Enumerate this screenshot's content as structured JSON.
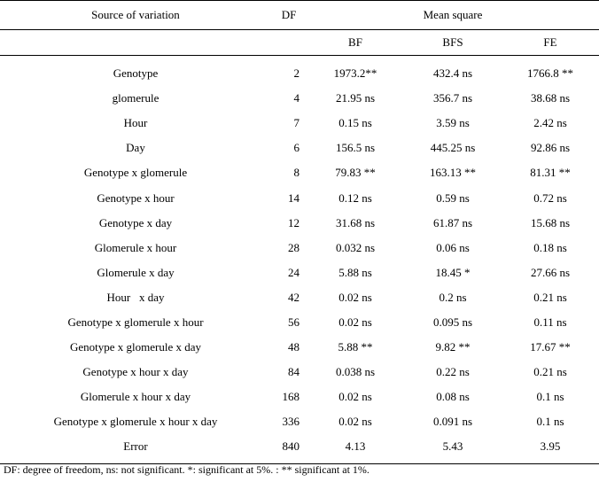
{
  "header": {
    "source": "Source of variation",
    "df": "DF",
    "mean_square": "Mean square",
    "bf": "BF",
    "bfs": "BFS",
    "fe": "FE"
  },
  "rows": [
    {
      "source": "Genotype",
      "df": "2",
      "bf": "1973.2**",
      "bfs": "432.4 ns",
      "fe": "1766.8 **"
    },
    {
      "source": "glomerule",
      "df": "4",
      "bf": "21.95 ns",
      "bfs": "356.7 ns",
      "fe": "38.68 ns"
    },
    {
      "source": "Hour",
      "df": "7",
      "bf": "0.15 ns",
      "bfs": "3.59 ns",
      "fe": "2.42 ns"
    },
    {
      "source": "Day",
      "df": "6",
      "bf": "156.5 ns",
      "bfs": "445.25 ns",
      "fe": "92.86 ns"
    },
    {
      "source": "Genotype x glomerule",
      "df": "8",
      "bf": "79.83 **",
      "bfs": "163.13 **",
      "fe": "81.31 **"
    },
    {
      "source": "Genotype x hour",
      "df": "14",
      "bf": "0.12 ns",
      "bfs": "0.59 ns",
      "fe": "0.72 ns"
    },
    {
      "source": "Genotype x day",
      "df": "12",
      "bf": "31.68 ns",
      "bfs": "61.87 ns",
      "fe": "15.68 ns"
    },
    {
      "source": "Glomerule x hour",
      "df": "28",
      "bf": "0.032 ns",
      "bfs": "0.06 ns",
      "fe": "0.18 ns"
    },
    {
      "source": "Glomerule x day",
      "df": "24",
      "bf": "5.88 ns",
      "bfs": "18.45 *",
      "fe": "27.66 ns"
    },
    {
      "source": "Hour   x day",
      "df": "42",
      "bf": "0.02 ns",
      "bfs": "0.2 ns",
      "fe": "0.21 ns"
    },
    {
      "source": "Genotype x glomerule x hour",
      "df": "56",
      "bf": "0.02 ns",
      "bfs": "0.095 ns",
      "fe": "0.11 ns"
    },
    {
      "source": "Genotype x glomerule x day",
      "df": "48",
      "bf": "5.88 **",
      "bfs": "9.82 **",
      "fe": "17.67 **"
    },
    {
      "source": "Genotype x hour x day",
      "df": "84",
      "bf": "0.038 ns",
      "bfs": "0.22 ns",
      "fe": "0.21 ns"
    },
    {
      "source": "Glomerule x hour x day",
      "df": "168",
      "bf": "0.02 ns",
      "bfs": "0.08 ns",
      "fe": "0.1 ns"
    },
    {
      "source": "Genotype x glomerule x hour x day",
      "df": "336",
      "bf": "0.02 ns",
      "bfs": "0.091 ns",
      "fe": "0.1 ns"
    },
    {
      "source": "Error",
      "df": "840",
      "bf": "4.13",
      "bfs": "5.43",
      "fe": "3.95"
    }
  ],
  "footnote": "DF: degree of freedom, ns: not significant. *: significant at 5%. : ** significant at 1%."
}
